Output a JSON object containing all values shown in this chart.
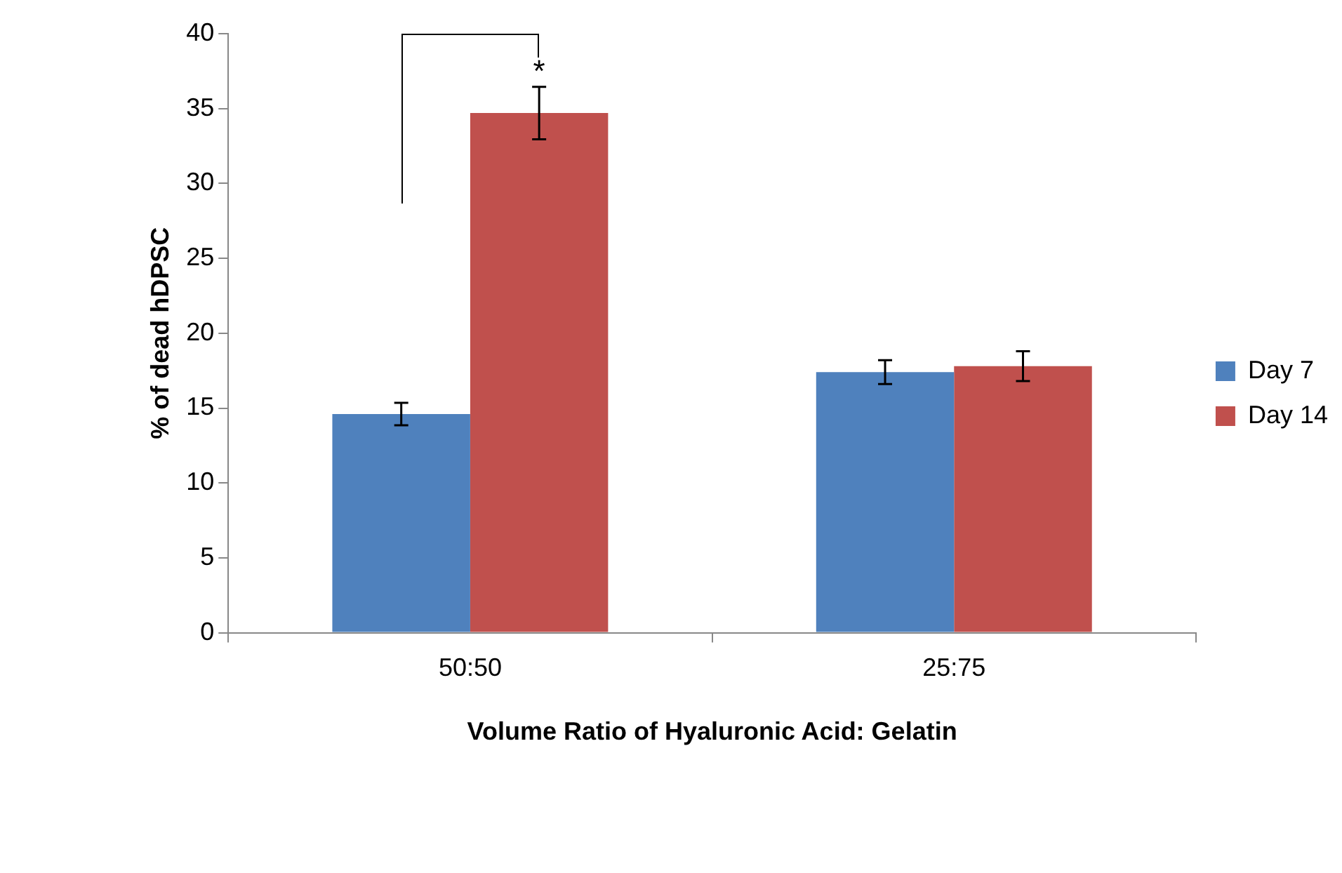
{
  "chart_data": {
    "type": "bar",
    "xlabel": "Volume Ratio of Hyaluronic Acid: Gelatin",
    "ylabel": "% of dead hDPSC",
    "categories": [
      "50:50",
      "25:75"
    ],
    "series": [
      {
        "name": "Day 7",
        "color": "#4f81bd",
        "values": [
          14.6,
          17.4
        ],
        "errors": [
          0.75,
          0.8
        ]
      },
      {
        "name": "Day 14",
        "color": "#c0504d",
        "values": [
          34.7,
          17.8
        ],
        "errors": [
          1.75,
          1.0
        ]
      }
    ],
    "ylim": [
      0,
      40
    ],
    "yticks": [
      0,
      5,
      10,
      15,
      20,
      25,
      30,
      35,
      40
    ],
    "grid": false,
    "legend": "right",
    "annotations": [
      "*"
    ]
  }
}
